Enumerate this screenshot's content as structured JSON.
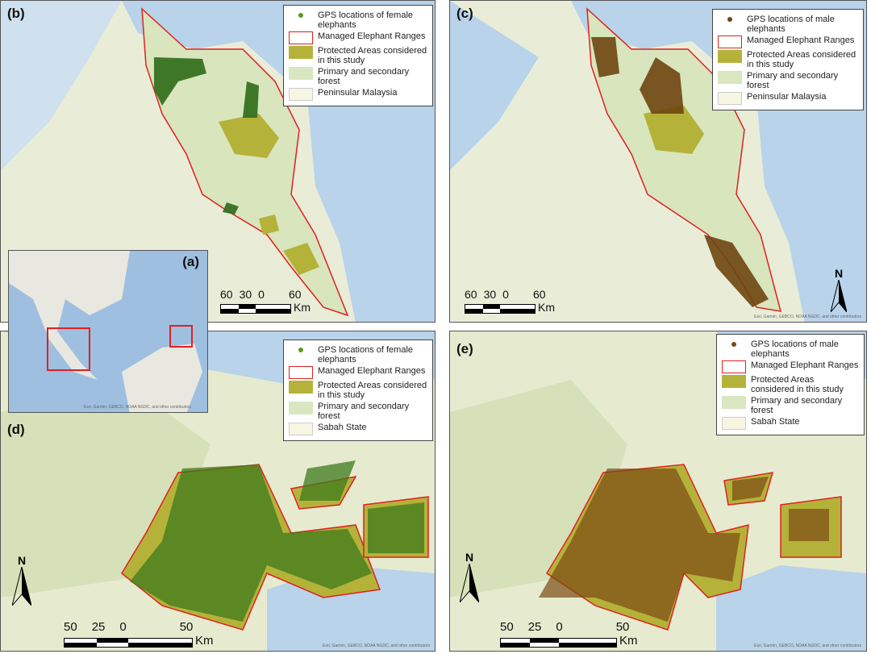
{
  "panels": {
    "b": {
      "label": "(b)",
      "legend": {
        "gps": "GPS locations of female elephants",
        "ranges": "Managed Elephant Ranges",
        "protected": "Protected Areas considered in this study",
        "forest": "Primary and secondary forest",
        "region": "Peninsular Malaysia"
      },
      "scale": {
        "ticks": [
          "60",
          "30",
          "0",
          "60"
        ],
        "unit": "Km"
      }
    },
    "c": {
      "label": "(c)",
      "legend": {
        "gps": "GPS locations of male elephants",
        "ranges": "Managed Elephant Ranges",
        "protected": "Protected Areas considered in this study",
        "forest": "Primary and secondary forest",
        "region": "Peninsular Malaysia"
      },
      "scale": {
        "ticks": [
          "60",
          "30",
          "0",
          "60"
        ],
        "unit": "Km"
      },
      "north": "N",
      "attribution": "Esri, Garmin, GEBCO, NOAA NGDC, and other contributors"
    },
    "a": {
      "label": "(a)",
      "attribution": "Esri, Garmin, GEBCO, NOAA NGDC, and other contributors"
    },
    "d": {
      "label": "(d)",
      "legend": {
        "gps": "GPS locations of female elephants",
        "ranges": "Managed Elephant Ranges",
        "protected": "Protected Areas considered in this study",
        "forest": "Primary and secondary forest",
        "region": "Sabah State"
      },
      "scale": {
        "ticks": [
          "50",
          "25",
          "0",
          "50"
        ],
        "unit": "Km"
      },
      "north": "N",
      "attribution": "Esri, Garmin, GEBCO, NOAA NGDC, and other contributors"
    },
    "e": {
      "label": "(e)",
      "legend": {
        "gps": "GPS locations of male elephants",
        "ranges": "Managed Elephant Ranges",
        "protected": "Protected Areas considered in this study",
        "forest": "Primary and secondary forest",
        "region": "Sabah State"
      },
      "scale": {
        "ticks": [
          "50",
          "25",
          "0",
          "50"
        ],
        "unit": "Km"
      },
      "north": "N",
      "attribution": "Esri, Garmin, GEBCO, NOAA NGDC, and other contributors"
    }
  },
  "colors": {
    "sea": "#b8d3ea",
    "land": "#f4f3e0",
    "forest": "#d9e6c0",
    "protected": "#b5b23a",
    "range": "#e02020",
    "female": "#3d7a1c",
    "male": "#7a4a12"
  }
}
